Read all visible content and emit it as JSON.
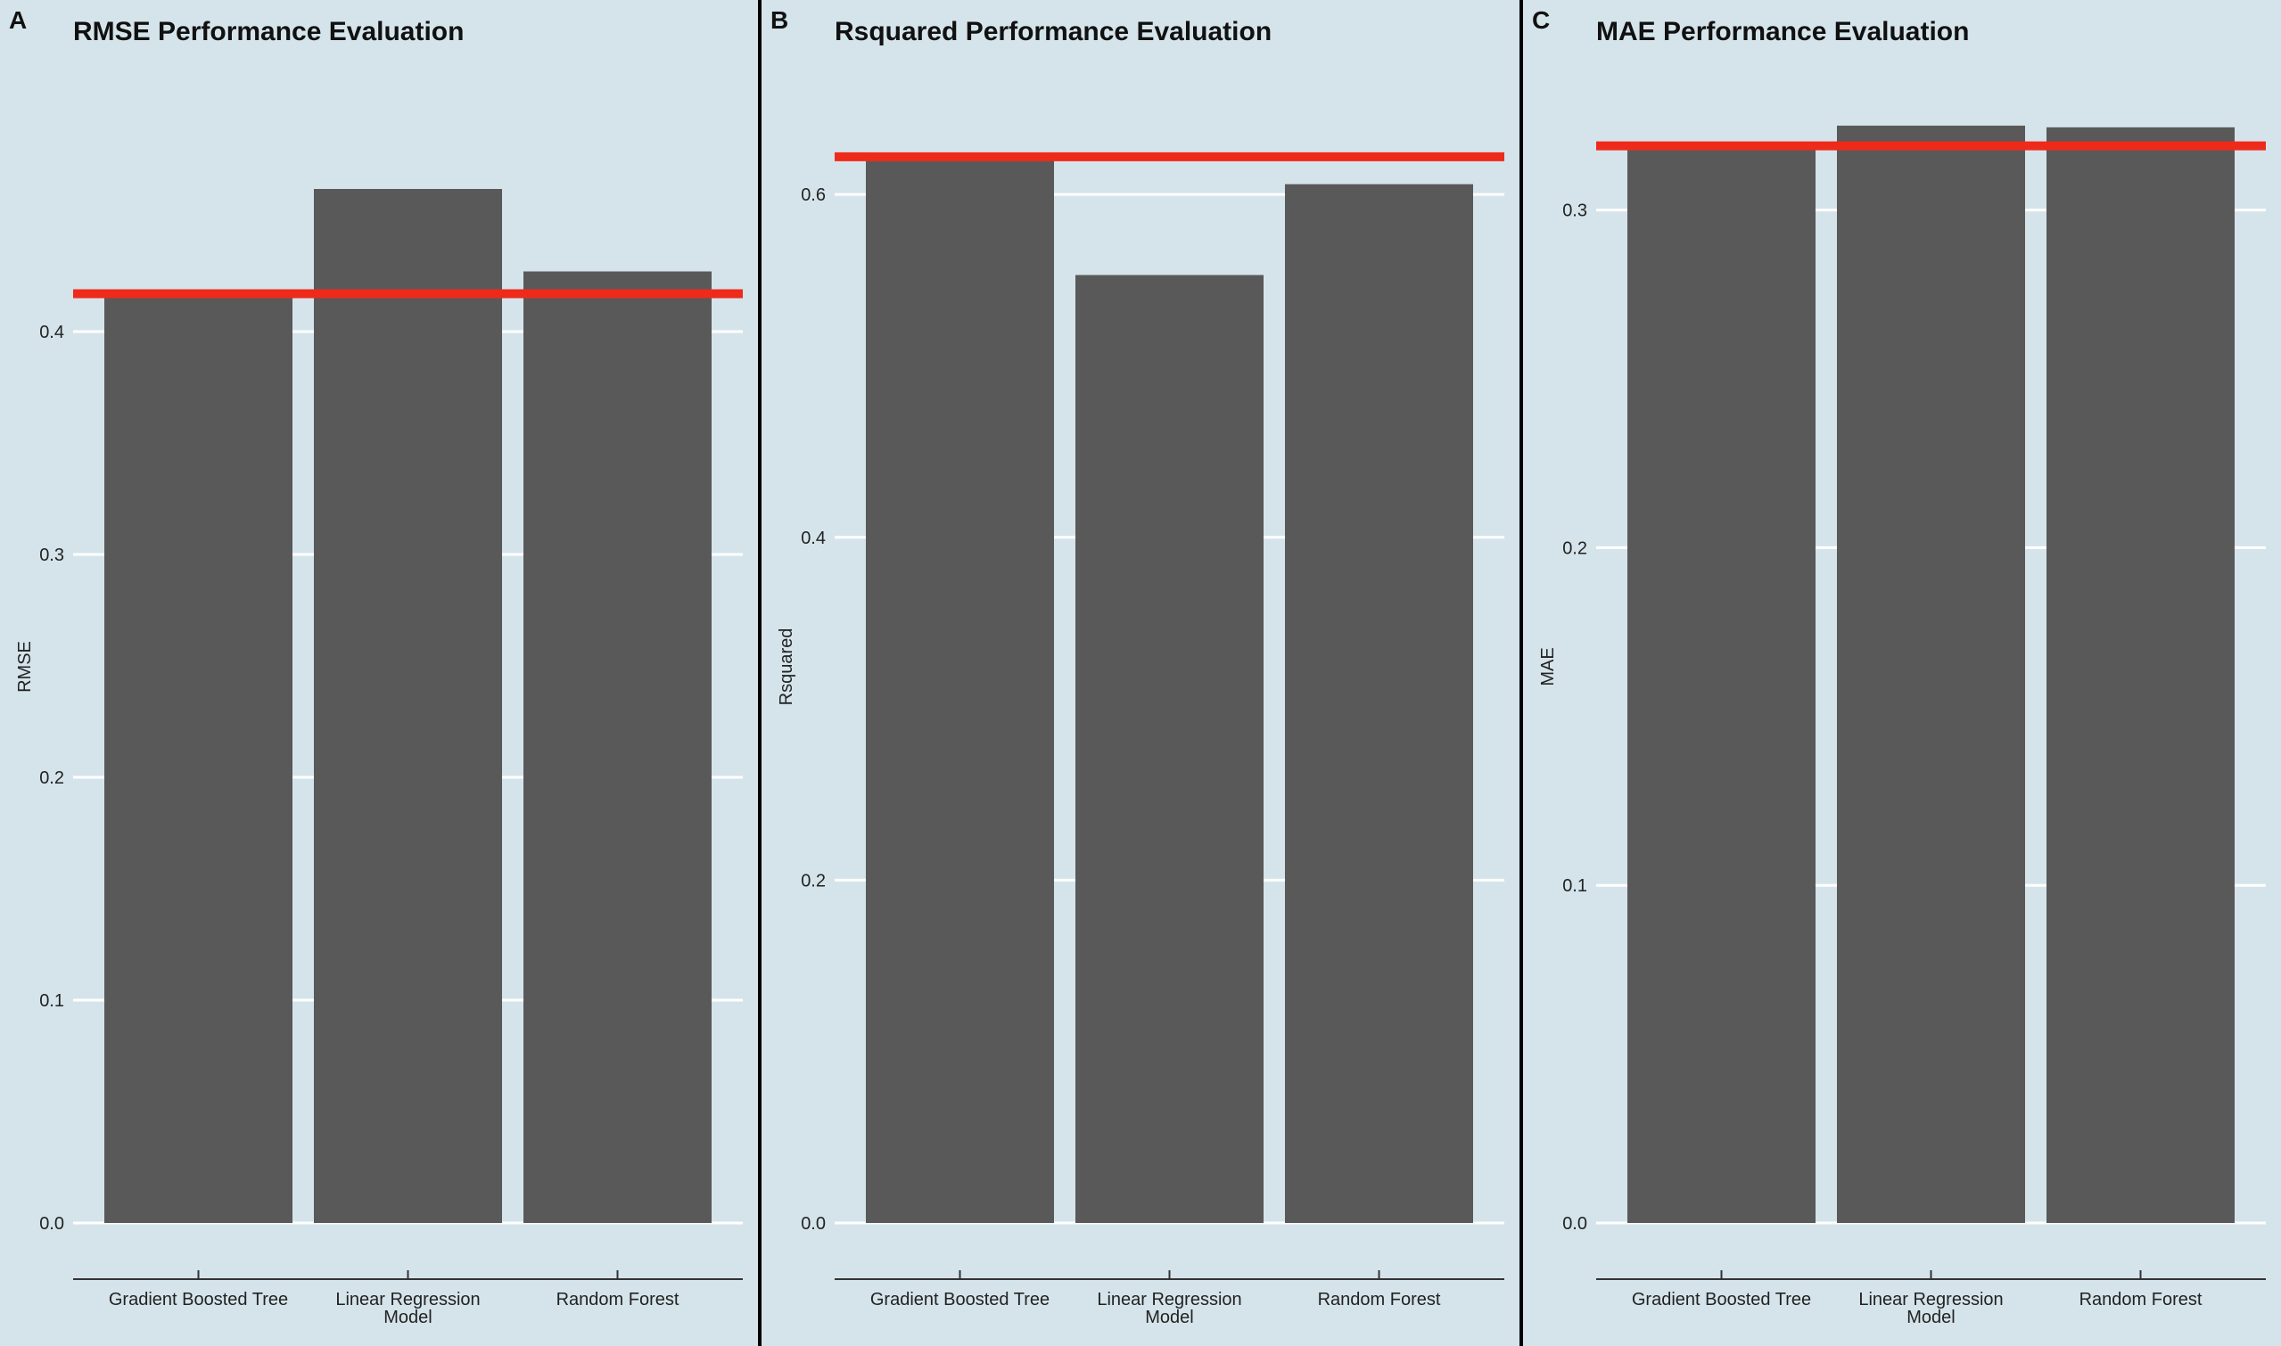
{
  "chart_data": [
    {
      "type": "bar",
      "panel_label": "A",
      "title": "RMSE Performance Evaluation",
      "ylabel": "RMSE",
      "categories": [
        "Gradient Boosted Tree",
        "Linear Regression Model",
        "Random Forest"
      ],
      "values": [
        0.418,
        0.464,
        0.427
      ],
      "reference_line": 0.417,
      "reference_line_color": "#ee2a1b",
      "ylim": [
        0.0,
        0.5
      ],
      "yticks": [
        0.0,
        0.1,
        0.2,
        0.3,
        0.4
      ],
      "ytick_labels": [
        "0.0",
        "0.1",
        "0.2",
        "0.3",
        "0.4"
      ],
      "grid": true
    },
    {
      "type": "bar",
      "panel_label": "B",
      "title": "Rsquared Performance Evaluation",
      "ylabel": "Rsquared",
      "categories": [
        "Gradient Boosted Tree",
        "Linear Regression Model",
        "Random Forest"
      ],
      "values": [
        0.622,
        0.553,
        0.606
      ],
      "reference_line": 0.622,
      "reference_line_color": "#ee2a1b",
      "ylim": [
        0.0,
        0.65
      ],
      "yticks": [
        0.0,
        0.2,
        0.4,
        0.6
      ],
      "ytick_labels": [
        "0.0",
        "0.2",
        "0.4",
        "0.6"
      ],
      "grid": true
    },
    {
      "type": "bar",
      "panel_label": "C",
      "title": "MAE Performance Evaluation",
      "ylabel": "MAE",
      "categories": [
        "Gradient Boosted Tree",
        "Linear Regression Model",
        "Random Forest"
      ],
      "values": [
        0.319,
        0.325,
        0.3245
      ],
      "reference_line": 0.319,
      "reference_line_color": "#ee2a1b",
      "ylim": [
        0.0,
        0.33
      ],
      "yticks": [
        0.0,
        0.1,
        0.2,
        0.3
      ],
      "ytick_labels": [
        "0.0",
        "0.1",
        "0.2",
        "0.3"
      ],
      "grid": true
    }
  ],
  "colors": {
    "panel_background": "#d5e4eb",
    "bar_fill": "#595959",
    "reference_line": "#ee2a1b",
    "grid": "#ffffff"
  }
}
